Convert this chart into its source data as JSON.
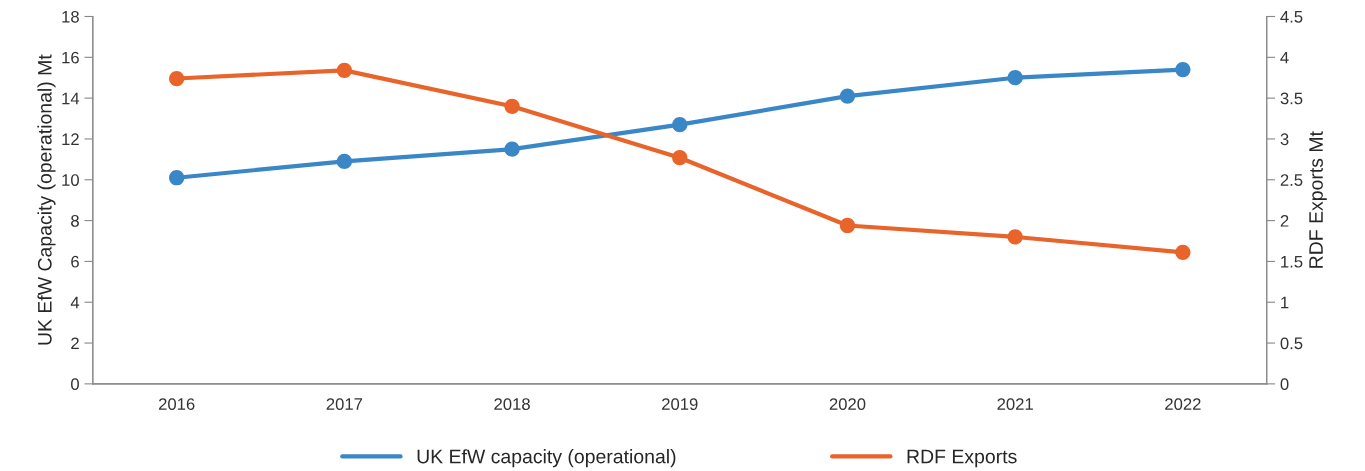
{
  "chart_data": {
    "type": "line",
    "categories": [
      "2016",
      "2017",
      "2018",
      "2019",
      "2020",
      "2021",
      "2022"
    ],
    "ylabel": "UK EfW Capacity (operational) Mt",
    "y2label": "RDF Exports Mt",
    "ylim": [
      0,
      18
    ],
    "yticks": [
      0,
      2,
      4,
      6,
      8,
      10,
      12,
      14,
      16,
      18
    ],
    "y2lim": [
      0,
      4.5
    ],
    "y2ticks": [
      0,
      0.5,
      1,
      1.5,
      2,
      2.5,
      3,
      3.5,
      4,
      4.5
    ],
    "series": [
      {
        "name": "UK EfW capacity (operational)",
        "color": "#3a87c8",
        "values": [
          10.1,
          10.9,
          11.5,
          12.7,
          14.1,
          15.0,
          15.4
        ]
      },
      {
        "name": "RDF Exports",
        "color": "#e9642a",
        "axis": "y2",
        "values": [
          3.74,
          3.84,
          3.4,
          2.77,
          1.94,
          1.8,
          1.61
        ]
      }
    ],
    "marker": "circle",
    "line_style": "solid",
    "grid": false,
    "legend": "bottom"
  }
}
